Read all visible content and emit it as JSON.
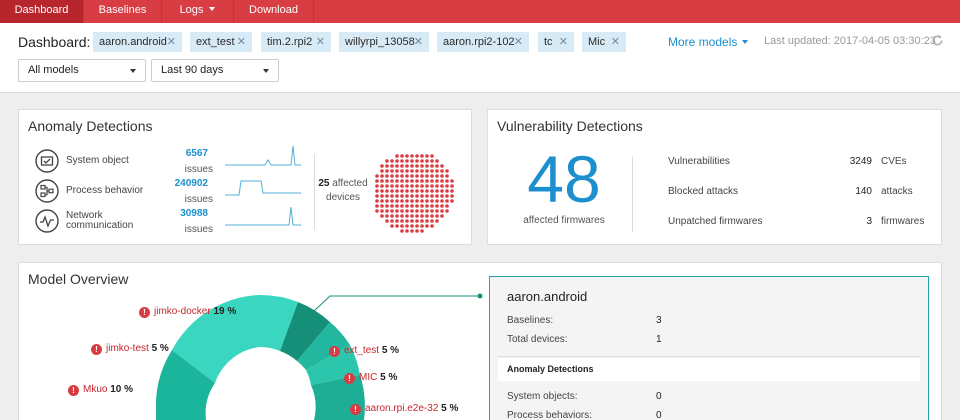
{
  "nav": {
    "tabs": [
      {
        "label": "Dashboard",
        "active": true
      },
      {
        "label": "Baselines"
      },
      {
        "label": "Logs"
      },
      {
        "label": "Download"
      }
    ]
  },
  "header": {
    "dashboard_label": "Dashboard:",
    "chips": [
      "aaron.android",
      "ext_test",
      "tim.2.rpi2",
      "willyrpi_13058",
      "aaron.rpi2-102",
      "tc",
      "Mic"
    ],
    "chip_close": "✕",
    "more_models": "More models",
    "last_updated": "Last updated: 2017-04-05 03:30:23",
    "model_select": "All models",
    "range_select": "Last 90 days"
  },
  "anomaly": {
    "title": "Anomaly Detections",
    "rows": [
      {
        "icon": "system-object-icon",
        "label1": "System object",
        "label2": "",
        "value": "6567",
        "unit": "issues"
      },
      {
        "icon": "process-behavior-icon",
        "label1": "Process behavior",
        "label2": "",
        "value": "240902",
        "unit": "issues"
      },
      {
        "icon": "network-communication-icon",
        "label1": "Network",
        "label2": "communication",
        "value": "30988",
        "unit": "issues"
      }
    ],
    "affected_count": "25",
    "affected_word": "affected",
    "affected_unit": "devices"
  },
  "vulnerability": {
    "title": "Vulnerability Detections",
    "big_number": "48",
    "big_label": "affected firmwares",
    "rows": [
      {
        "label": "Vulnerabilities",
        "value": "3249",
        "unit": "CVEs"
      },
      {
        "label": "Blocked attacks",
        "value": "140",
        "unit": "attacks"
      },
      {
        "label": "Unpatched firmwares",
        "value": "3",
        "unit": "firmwares"
      }
    ]
  },
  "overview": {
    "title": "Model Overview",
    "callouts": [
      {
        "name": "jimko-docker",
        "pct": "19 %"
      },
      {
        "name": "jimko-test",
        "pct": "5 %"
      },
      {
        "name": "Mkuo",
        "pct": "10 %"
      },
      {
        "name": "ext_test",
        "pct": "5 %"
      },
      {
        "name": "MIC",
        "pct": "5 %"
      },
      {
        "name": "aaron.rpi.e2e-32",
        "pct": "5 %"
      }
    ],
    "warn_glyph": "!",
    "colors": {
      "teal_light": "#3dd6c0",
      "teal_mid": "#22c4ad",
      "teal_dark": "#168f78",
      "accent": "#d93d44",
      "blue": "#1d8fce"
    },
    "detail": {
      "title": "aaron.android",
      "rows": [
        {
          "label": "Baselines:",
          "value": "3"
        },
        {
          "label": "Total devices:",
          "value": "1"
        }
      ],
      "section": "Anomaly Detections",
      "rows2": [
        {
          "label": "System objects:",
          "value": "0"
        },
        {
          "label": "Process behaviors:",
          "value": "0"
        }
      ]
    }
  }
}
